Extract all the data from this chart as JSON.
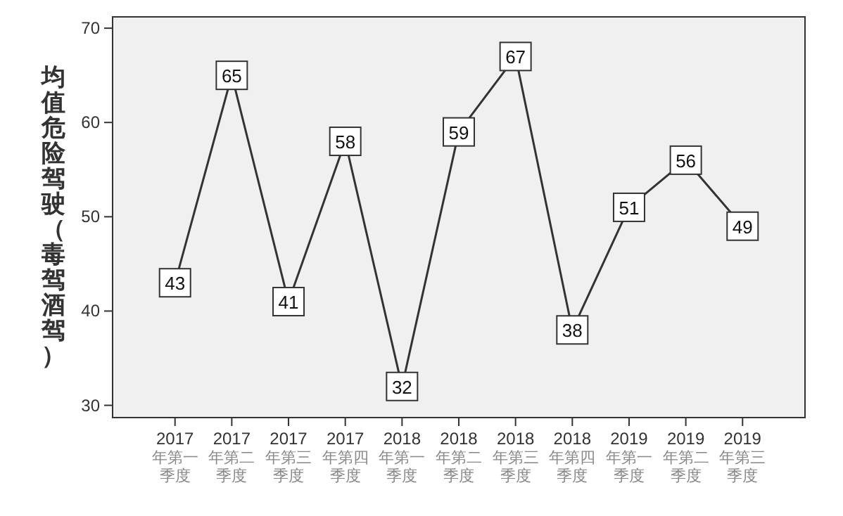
{
  "chart_data": {
    "type": "line",
    "ylabel": "均值危险驾驶（毒驾酒驾）",
    "categories": [
      "2017年第一季度",
      "2017年第二季度",
      "2017年第三季度",
      "2017年第四季度",
      "2018年第一季度",
      "2018年第二季度",
      "2018年第三季度",
      "2018年第四季度",
      "2019年第一季度",
      "2019年第二季度",
      "2019年第三季度"
    ],
    "series": [
      {
        "color": "#333333",
        "values": [
          43,
          65,
          41,
          58,
          32,
          59,
          67,
          38,
          51,
          56,
          49
        ]
      }
    ],
    "ylim": [
      28.7,
      71.2
    ],
    "yticks": [
      30,
      40,
      50,
      60,
      70
    ],
    "data_labels": true,
    "grid": false,
    "marker": "square",
    "line_style": "solid"
  }
}
